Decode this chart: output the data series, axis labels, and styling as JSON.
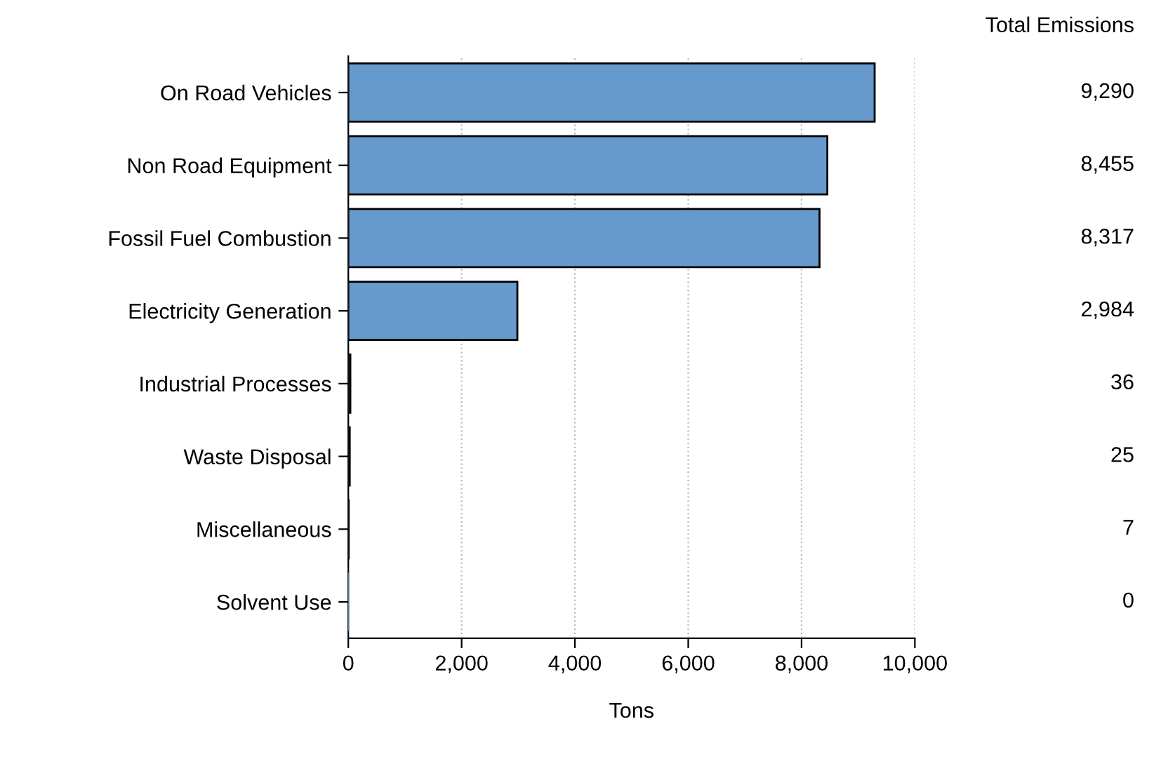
{
  "chart_data": {
    "type": "bar",
    "orientation": "horizontal",
    "xlabel": "Tons",
    "categories": [
      "On Road Vehicles",
      "Non Road Equipment",
      "Fossil Fuel Combustion",
      "Electricity Generation",
      "Industrial Processes",
      "Waste Disposal",
      "Miscellaneous",
      "Solvent Use"
    ],
    "values": [
      9290,
      8455,
      8317,
      2984,
      36,
      25,
      7,
      0
    ],
    "value_labels": [
      "9,290",
      "8,455",
      "8,317",
      "2,984",
      "36",
      "25",
      "7",
      "0"
    ],
    "color": "#6699cc",
    "xlim": [
      0,
      10000
    ],
    "xticks": [
      {
        "value": 0,
        "label": "0"
      },
      {
        "value": 2000,
        "label": "2,000"
      },
      {
        "value": 4000,
        "label": "4,000"
      },
      {
        "value": 6000,
        "label": "6,000"
      },
      {
        "value": 8000,
        "label": "8,000"
      },
      {
        "value": 10000,
        "label": "10,000"
      }
    ],
    "grid": "x",
    "annotations": [
      "Total Emissions"
    ]
  }
}
